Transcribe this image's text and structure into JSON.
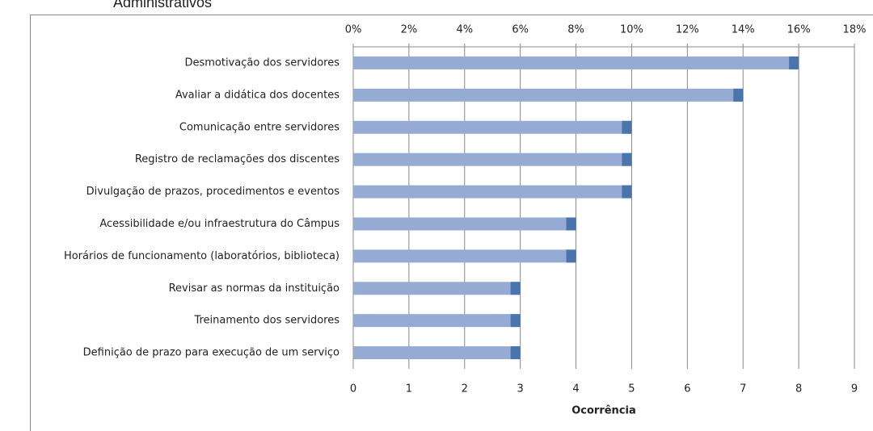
{
  "chart_data": {
    "type": "bar",
    "orientation": "horizontal",
    "title": "Administrativos",
    "xlabel": "Ocorrência",
    "categories": [
      "Desmotivação dos servidores",
      "Avaliar a didática dos docentes",
      "Comunicação entre servidores",
      "Registro de reclamações dos discentes",
      "Divulgação de prazos, procedimentos e eventos",
      "Acessibilidade e/ou infraestrutura do Câmpus",
      "Horários de funcionamento (laboratórios, biblioteca)",
      "Revisar as normas da instituição",
      "Treinamento dos servidores",
      "Definição de prazo para execução de um serviço"
    ],
    "series": [
      {
        "color": "#95abd3",
        "values": [
          8,
          7,
          5,
          5,
          5,
          4,
          4,
          3,
          3,
          3
        ]
      },
      {
        "color": "#4a74ad",
        "axis": "x2",
        "values": [
          16,
          14,
          10,
          10,
          10,
          8,
          8,
          6,
          6,
          6
        ]
      }
    ],
    "xlim": [
      0,
      9
    ],
    "xticks": [
      0,
      1,
      2,
      3,
      4,
      5,
      6,
      7,
      8,
      9
    ],
    "x2lim": [
      0,
      18
    ],
    "x2ticks": [
      {
        "value": 0,
        "label": "0%"
      },
      {
        "value": 2,
        "label": "2%"
      },
      {
        "value": 4,
        "label": "4%"
      },
      {
        "value": 6,
        "label": "6%"
      },
      {
        "value": 8,
        "label": "8%"
      },
      {
        "value": 10,
        "label": "10%"
      },
      {
        "value": 12,
        "label": "12%"
      },
      {
        "value": 14,
        "label": "14%"
      },
      {
        "value": 16,
        "label": "16%"
      },
      {
        "value": 18,
        "label": "18%"
      }
    ],
    "grid": true
  }
}
